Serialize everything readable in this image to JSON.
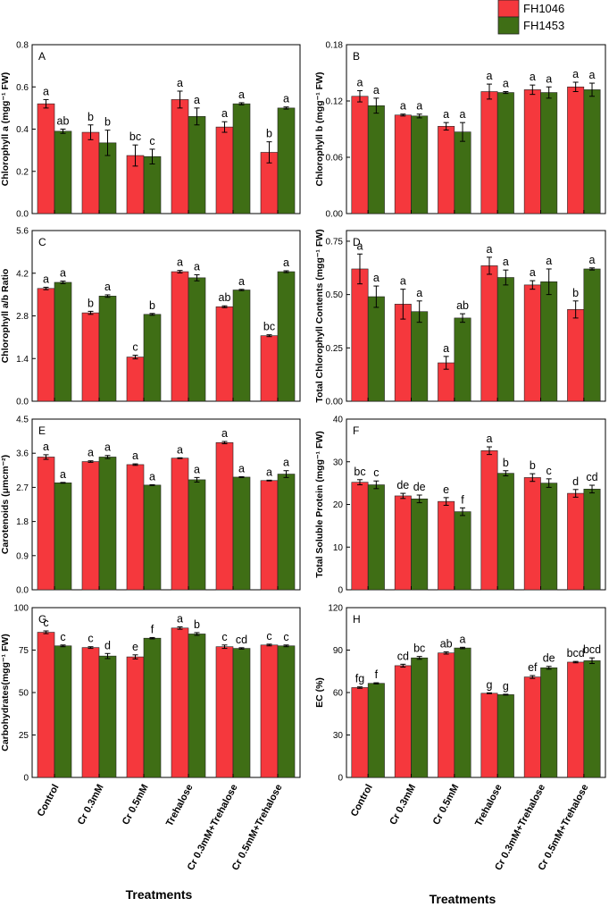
{
  "legend": [
    {
      "name": "FH1046",
      "color": "#f5383d"
    },
    {
      "name": "FH1453",
      "color": "#3f6e15"
    }
  ],
  "xlabel": "Treatments",
  "categories": [
    "Control",
    "Cr 0.3mM",
    "Cr 0.5mM",
    "Trehalose",
    "Cr 0.3mM+Trehalose",
    "Cr 0.5mM+Trehalose"
  ],
  "chart_data": [
    {
      "type": "bar",
      "panel": "A",
      "ylabel": "Chlorophyll a (mgg⁻¹ FW)",
      "ylim": [
        0,
        0.8
      ],
      "yticks": [
        "0.0",
        "0.2",
        "0.4",
        "0.6",
        "0.8"
      ],
      "tick_values": [
        0,
        0.2,
        0.4,
        0.6,
        0.8
      ],
      "series": [
        {
          "name": "FH1046",
          "values": [
            0.52,
            0.385,
            0.275,
            0.54,
            0.41,
            0.29
          ],
          "errors": [
            0.02,
            0.035,
            0.05,
            0.04,
            0.025,
            0.05
          ],
          "letters": [
            "a",
            "b",
            "bc",
            "a",
            "a",
            "b"
          ]
        },
        {
          "name": "FH1453",
          "values": [
            0.39,
            0.335,
            0.27,
            0.46,
            0.52,
            0.5
          ],
          "errors": [
            0.01,
            0.06,
            0.035,
            0.04,
            0.005,
            0.005
          ],
          "letters": [
            "ab",
            "b",
            "c",
            "a",
            "a",
            "a"
          ]
        }
      ]
    },
    {
      "type": "bar",
      "panel": "B",
      "ylabel": "Chlorophyll b (mgg⁻¹ FW)",
      "ylim": [
        0,
        0.18
      ],
      "yticks": [
        "0.00",
        "0.06",
        "0.12",
        "0.18"
      ],
      "tick_values": [
        0,
        0.06,
        0.12,
        0.18
      ],
      "series": [
        {
          "name": "FH1046",
          "values": [
            0.125,
            0.105,
            0.093,
            0.13,
            0.132,
            0.135
          ],
          "errors": [
            0.006,
            0.001,
            0.004,
            0.008,
            0.005,
            0.005
          ],
          "letters": [
            "a",
            "a",
            "a",
            "a",
            "a",
            "a"
          ]
        },
        {
          "name": "FH1453",
          "values": [
            0.115,
            0.104,
            0.087,
            0.129,
            0.129,
            0.132
          ],
          "errors": [
            0.008,
            0.002,
            0.01,
            0.001,
            0.006,
            0.007
          ],
          "letters": [
            "a",
            "a",
            "a",
            "a",
            "a",
            "a"
          ]
        }
      ]
    },
    {
      "type": "bar",
      "panel": "C",
      "ylabel": "Chlorophyll a/b Ratio",
      "ylim": [
        0,
        5.6
      ],
      "yticks": [
        "0.0",
        "1.4",
        "2.8",
        "4.2",
        "5.6"
      ],
      "tick_values": [
        0,
        1.4,
        2.8,
        4.2,
        5.6
      ],
      "series": [
        {
          "name": "FH1046",
          "values": [
            3.7,
            2.9,
            1.45,
            4.25,
            3.1,
            2.15
          ],
          "errors": [
            0.04,
            0.05,
            0.06,
            0.04,
            0.03,
            0.03
          ],
          "letters": [
            "a",
            "b",
            "c",
            "a",
            "ab",
            "bc"
          ]
        },
        {
          "name": "FH1453",
          "values": [
            3.9,
            3.45,
            2.85,
            4.05,
            3.65,
            4.25
          ],
          "errors": [
            0.04,
            0.04,
            0.03,
            0.1,
            0.02,
            0.03
          ],
          "letters": [
            "a",
            "a",
            "b",
            "a",
            "a",
            "a"
          ]
        }
      ]
    },
    {
      "type": "bar",
      "panel": "D",
      "ylabel": "Total Chlorophyll Contents (mgg⁻¹ FW)",
      "ylim": [
        0,
        0.8
      ],
      "yticks": [
        "0.00",
        "0.25",
        "0.50",
        "0.75"
      ],
      "tick_values": [
        0,
        0.25,
        0.5,
        0.75
      ],
      "series": [
        {
          "name": "FH1046",
          "values": [
            0.62,
            0.455,
            0.18,
            0.635,
            0.545,
            0.43
          ],
          "errors": [
            0.07,
            0.07,
            0.03,
            0.04,
            0.02,
            0.04
          ],
          "letters": [
            "a",
            "a",
            "a",
            "a",
            "a",
            "b"
          ]
        },
        {
          "name": "FH1453",
          "values": [
            0.49,
            0.42,
            0.39,
            0.58,
            0.56,
            0.62
          ],
          "errors": [
            0.05,
            0.05,
            0.02,
            0.035,
            0.06,
            0.005
          ],
          "letters": [
            "a",
            "a",
            "ab",
            "a",
            "a",
            "a"
          ]
        }
      ]
    },
    {
      "type": "bar",
      "panel": "E",
      "ylabel": "Carotenoids (μmcm⁻²)",
      "ylim": [
        0,
        4.5
      ],
      "yticks": [
        "0.0",
        "0.9",
        "1.8",
        "2.7",
        "3.6",
        "4.5"
      ],
      "tick_values": [
        0,
        0.9,
        1.8,
        2.7,
        3.6,
        4.5
      ],
      "series": [
        {
          "name": "FH1046",
          "values": [
            3.5,
            3.38,
            3.3,
            3.47,
            3.88,
            2.88
          ],
          "errors": [
            0.06,
            0.02,
            0.02,
            0.01,
            0.03,
            0.01
          ],
          "letters": [
            "a",
            "a",
            "a",
            "a",
            "a",
            "a"
          ]
        },
        {
          "name": "FH1453",
          "values": [
            2.82,
            3.5,
            2.76,
            2.9,
            2.97,
            3.05
          ],
          "errors": [
            0.01,
            0.04,
            0.01,
            0.06,
            0.01,
            0.09
          ],
          "letters": [
            "a",
            "a",
            "a",
            "a",
            "a",
            "a"
          ]
        }
      ]
    },
    {
      "type": "bar",
      "panel": "F",
      "ylabel": "Total Soluble Protein (mgg⁻¹ FW)",
      "ylim": [
        0,
        40
      ],
      "yticks": [
        "0",
        "10",
        "20",
        "30",
        "40"
      ],
      "tick_values": [
        0,
        10,
        20,
        30,
        40
      ],
      "series": [
        {
          "name": "FH1046",
          "values": [
            25.2,
            22,
            20.7,
            32.6,
            26.3,
            22.6
          ],
          "errors": [
            0.6,
            0.6,
            0.9,
            0.9,
            0.9,
            0.9
          ],
          "letters": [
            "bc",
            "de",
            "e",
            "a",
            "b",
            "d"
          ]
        },
        {
          "name": "FH1453",
          "values": [
            24.6,
            21.3,
            18.3,
            27.3,
            25,
            23.6
          ],
          "errors": [
            0.9,
            0.9,
            0.9,
            0.6,
            1.0,
            0.9
          ],
          "letters": [
            "c",
            "de",
            "f",
            "b",
            "c",
            "cd"
          ]
        }
      ]
    },
    {
      "type": "bar",
      "panel": "G",
      "ylabel": "Carbohydrates(mgg⁻¹ FW)",
      "ylim": [
        0,
        100
      ],
      "yticks": [
        "0",
        "25",
        "50",
        "75",
        "100"
      ],
      "tick_values": [
        0,
        25,
        50,
        75,
        100
      ],
      "series": [
        {
          "name": "FH1046",
          "values": [
            85.5,
            76.5,
            71,
            88,
            77,
            78
          ],
          "errors": [
            0.8,
            0.5,
            1.2,
            0.7,
            1.0,
            0.5
          ],
          "letters": [
            "c",
            "c",
            "e",
            "a",
            "c",
            "c"
          ]
        },
        {
          "name": "FH1453",
          "values": [
            77.5,
            71.5,
            82,
            84.5,
            76,
            77.5
          ],
          "errors": [
            0.5,
            1.5,
            0.4,
            0.8,
            0.4,
            0.5
          ],
          "letters": [
            "c",
            "d",
            "f",
            "b",
            "cd",
            "c"
          ]
        }
      ]
    },
    {
      "type": "bar",
      "panel": "H",
      "ylabel": "EC (%)",
      "ylim": [
        0,
        120
      ],
      "yticks": [
        "0",
        "30",
        "60",
        "90",
        "120"
      ],
      "tick_values": [
        0,
        30,
        60,
        90,
        120
      ],
      "series": [
        {
          "name": "FH1046",
          "values": [
            63.5,
            79,
            88,
            59.5,
            71,
            81.5
          ],
          "errors": [
            0.5,
            1.0,
            0.8,
            0.3,
            1.0,
            0.5
          ],
          "letters": [
            "fg",
            "cd",
            "ab",
            "g",
            "ef",
            "bcd"
          ]
        },
        {
          "name": "FH1453",
          "values": [
            66.5,
            84.5,
            91.5,
            58.5,
            77.5,
            82.5
          ],
          "errors": [
            0.4,
            1.0,
            0.5,
            0.3,
            1.0,
            2.0
          ],
          "letters": [
            "f",
            "bc",
            "a",
            "g",
            "de",
            "bcd"
          ]
        }
      ]
    }
  ]
}
